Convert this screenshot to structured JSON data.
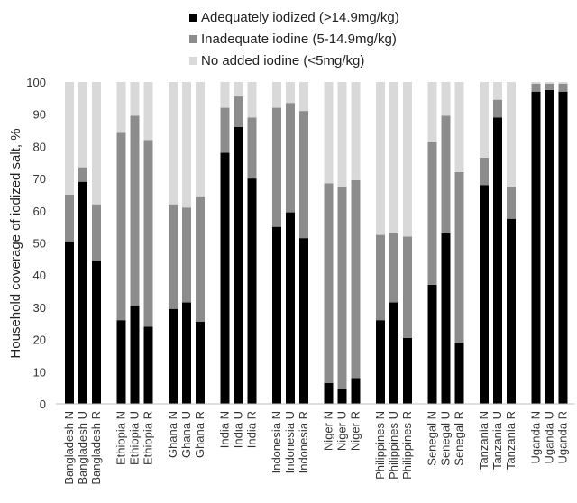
{
  "chart_data": {
    "type": "bar",
    "stacked": true,
    "ylabel": "Household coverage of iodized salt, %",
    "ylim": [
      0,
      100
    ],
    "yticks": [
      0,
      10,
      20,
      30,
      40,
      50,
      60,
      70,
      80,
      90,
      100
    ],
    "grid": false,
    "legend_position": "top-center",
    "groups": [
      {
        "country": "Bangladesh",
        "bars": [
          "Bangladesh N",
          "Bangladesh U",
          "Bangladesh R"
        ]
      },
      {
        "country": "Ethiopia",
        "bars": [
          "Ethiopia N",
          "Ethiopia U",
          "Ethiopia R"
        ]
      },
      {
        "country": "Ghana",
        "bars": [
          "Ghana N",
          "Ghana U",
          "Ghana R"
        ]
      },
      {
        "country": "India",
        "bars": [
          "India N",
          "India U",
          "India R"
        ]
      },
      {
        "country": "Indonesia",
        "bars": [
          "Indonesia N",
          "Indonesia U",
          "Indonesia R"
        ]
      },
      {
        "country": "Niger",
        "bars": [
          "Niger N",
          "Niger U",
          "Niger R"
        ]
      },
      {
        "country": "Philippines",
        "bars": [
          "Philippines N",
          "Philippines U",
          "Philippines R"
        ]
      },
      {
        "country": "Senegal",
        "bars": [
          "Senegal N",
          "Senegal U",
          "Senegal R"
        ]
      },
      {
        "country": "Tanzania",
        "bars": [
          "Tanzania N",
          "Tanzania U",
          "Tanzania R"
        ]
      },
      {
        "country": "Uganda",
        "bars": [
          "Uganda N",
          "Uganda U",
          "Uganda R"
        ]
      }
    ],
    "series": [
      {
        "name": "Adequately iodized (>14.9mg/kg)",
        "color": "#000000",
        "values": [
          50.5,
          69,
          44.5,
          26,
          30.5,
          24,
          29.5,
          31.5,
          25.5,
          78,
          86,
          70,
          55,
          59.5,
          51.5,
          6.5,
          4.5,
          8,
          26,
          31.5,
          20.5,
          37,
          53,
          19,
          68,
          89,
          57.5,
          97,
          97.5,
          97
        ]
      },
      {
        "name": "Inadequate iodine (5-14.9mg/kg)",
        "color": "#8c8c8c",
        "values": [
          14.5,
          4.5,
          17.5,
          58.5,
          59,
          58,
          32.5,
          29.5,
          39,
          14,
          9.5,
          19,
          37,
          34,
          39.5,
          62,
          63,
          61.5,
          26.5,
          21.5,
          31.5,
          44.5,
          36.5,
          53,
          8.5,
          5.5,
          10,
          2.5,
          2,
          2.5
        ]
      },
      {
        "name": "No added iodine (<5mg/kg)",
        "color": "#d9d9d9",
        "values": [
          35,
          26.5,
          38,
          15.5,
          10.5,
          18,
          38,
          39,
          35.5,
          8,
          4.5,
          11,
          8,
          6.5,
          9,
          31.5,
          32.5,
          30.5,
          47.5,
          47,
          48,
          18.5,
          10.5,
          28,
          23.5,
          5.5,
          32.5,
          0.5,
          0.5,
          0.5
        ]
      }
    ]
  }
}
